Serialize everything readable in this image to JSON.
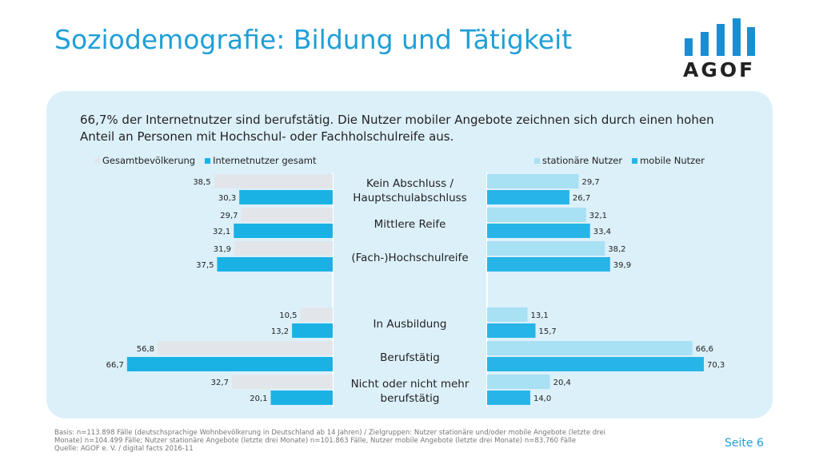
{
  "header": {
    "title": "Soziodemografie: Bildung und Tätigkeit"
  },
  "logo": {
    "text": "AGOF",
    "color": "#1a8fd0"
  },
  "intro": "66,7% der Internetnutzer sind berufstätig. Die Nutzer mobiler Angebote zeichnen sich durch einen hohen Anteil an Personen mit Hochschul- oder Fachholschulreife aus.",
  "colors": {
    "gesamt": "#e2e6ea",
    "internet": "#1ab2e5",
    "stationaer": "#a8e0f4",
    "mobile": "#27b5e8"
  },
  "chart_data": {
    "type": "bar",
    "categories": [
      "Kein Abschluss / Hauptschulabschluss",
      "Mittlere Reife",
      "(Fach-)Hochschulreife",
      "In Ausbildung",
      "Berufstätig",
      "Nicht oder nicht mehr berufstätig"
    ],
    "left": {
      "series": [
        {
          "name": "Gesamtbevölkerung",
          "values": [
            38.5,
            29.7,
            31.9,
            10.5,
            56.8,
            32.7
          ],
          "labels": [
            "38,5",
            "29,7",
            "31,9",
            "10,5",
            "56,8",
            "32,7"
          ]
        },
        {
          "name": "Internetnutzer gesamt",
          "values": [
            30.3,
            32.1,
            37.5,
            13.2,
            66.7,
            20.1
          ],
          "labels": [
            "30,3",
            "32,1",
            "37,5",
            "13,2",
            "66,7",
            "20,1"
          ]
        }
      ]
    },
    "right": {
      "series": [
        {
          "name": "stationäre Nutzer",
          "values": [
            29.7,
            32.1,
            38.2,
            13.1,
            66.6,
            20.4
          ],
          "labels": [
            "29,7",
            "32,1",
            "38,2",
            "13,1",
            "66,6",
            "20,4"
          ]
        },
        {
          "name": "mobile Nutzer",
          "values": [
            26.7,
            33.4,
            39.9,
            15.7,
            70.3,
            14.0
          ],
          "labels": [
            "26,7",
            "33,4",
            "39,9",
            "15,7",
            "70,3",
            "14,0"
          ]
        }
      ]
    },
    "xlim": [
      0,
      70.3
    ]
  },
  "footer": {
    "line1": "Basis: n=113.898 Fälle (deutschsprachige Wohnbevölkerung in Deutschland ab 14 Jahren) / Zielgruppen: Nutzer stationäre und/oder mobile Angebote (letzte drei",
    "line2": "Monate) n=104.499 Fälle; Nutzer stationäre Angebote (letzte drei Monate) n=101.863 Fälle, Nutzer mobile Angebote (letzte drei Monate) n=83.760 Fälle",
    "line3": "Quelle: AGOF e. V. / digital facts 2016-11"
  },
  "page_label": "Seite 6"
}
